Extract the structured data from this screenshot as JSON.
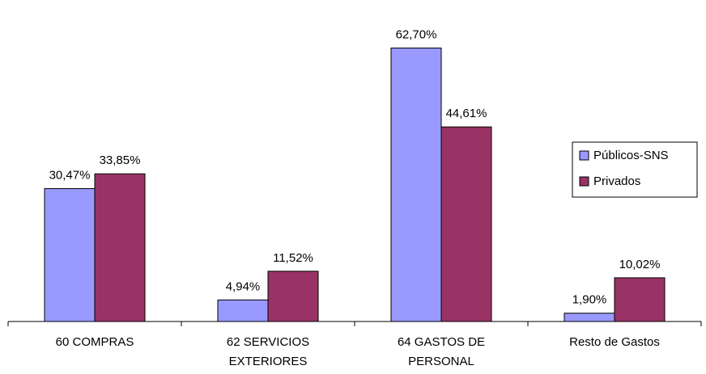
{
  "chart_data": {
    "type": "bar",
    "categories": [
      [
        "60 COMPRAS"
      ],
      [
        "62 SERVICIOS",
        "EXTERIORES"
      ],
      [
        "64 GASTOS DE",
        "PERSONAL"
      ],
      [
        "Resto de Gastos"
      ]
    ],
    "series": [
      {
        "name": "Públicos-SNS",
        "color": "#9999FF",
        "values": [
          30.47,
          4.94,
          62.7,
          1.9
        ],
        "labels": [
          "30,47%",
          "4,94%",
          "62,70%",
          "1,90%"
        ]
      },
      {
        "name": "Privados",
        "color": "#993366",
        "values": [
          33.85,
          11.52,
          44.61,
          10.02
        ],
        "labels": [
          "33,85%",
          "11,52%",
          "44,61%",
          "10,02%"
        ]
      }
    ],
    "ylim": [
      0,
      66
    ],
    "grid": false,
    "legend_position": "right"
  }
}
